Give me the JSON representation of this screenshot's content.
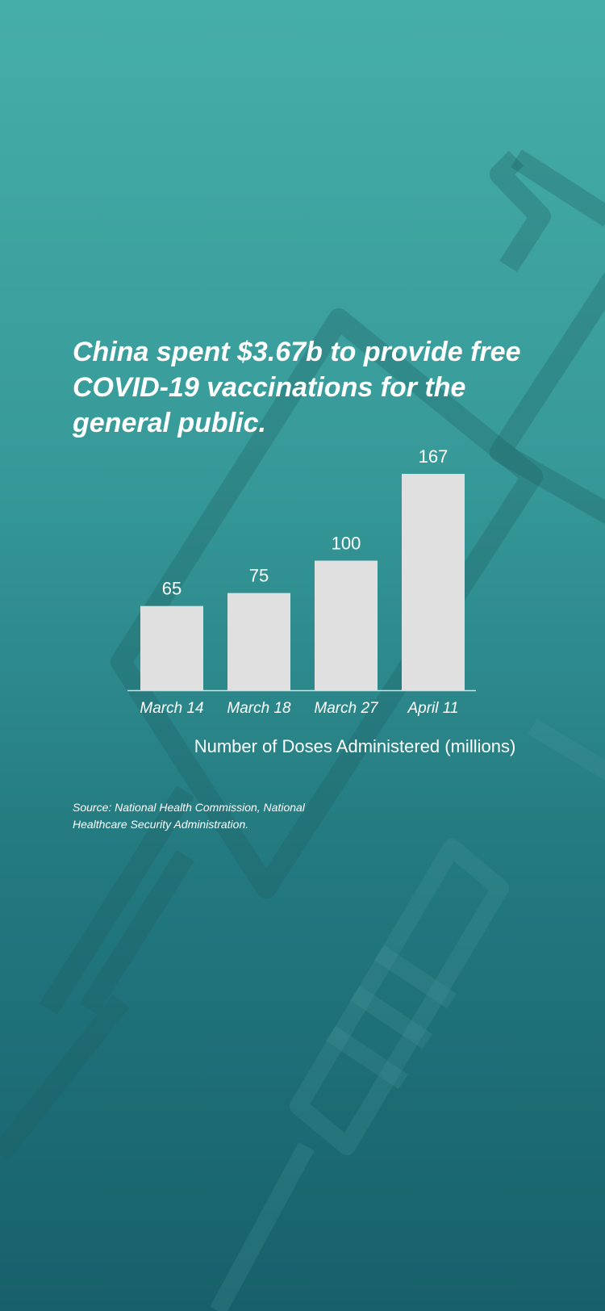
{
  "headline": "China spent $3.67b to provide free COVID-19 vaccinations for the general public.",
  "caption": "Number of Doses Administered (millions)",
  "source": "Source: National Health Commission, National Healthcare Security Administration.",
  "colors": {
    "bar": "#e0e0e0",
    "text": "#ffffff",
    "axis": "#d8dede",
    "background_top": "#46aea8",
    "background_bottom": "#17606b"
  },
  "chart_data": {
    "type": "bar",
    "categories": [
      "March 14",
      "March 18",
      "March 27",
      "April 11"
    ],
    "values": [
      65,
      75,
      100,
      167
    ],
    "xlabel": "Number of Doses Administered (millions)",
    "ylabel": "",
    "ylim": [
      0,
      167
    ],
    "grid": false
  }
}
